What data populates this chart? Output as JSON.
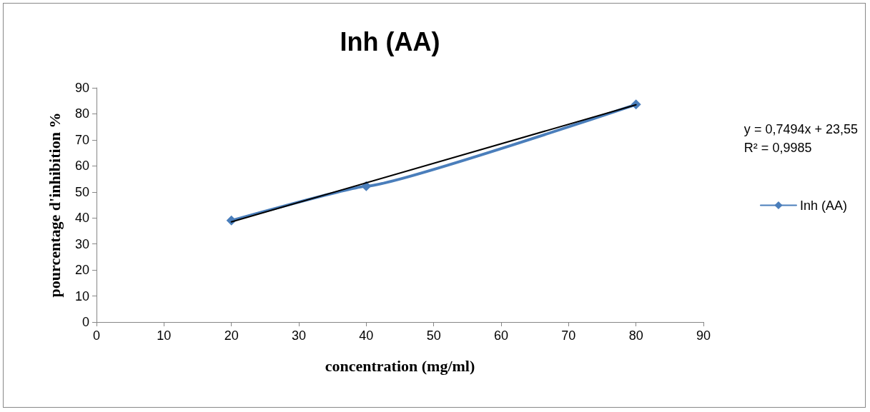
{
  "chart_data": {
    "type": "line",
    "title": "Inh (AA)",
    "xlabel": "concentration (mg/ml)",
    "ylabel": "pourcentage d'inhibition %",
    "series": [
      {
        "name": "Inh (AA)",
        "color": "#4a7ebb",
        "x": [
          20,
          40,
          80
        ],
        "values": [
          39,
          52.2,
          83.6
        ],
        "marker": "diamond"
      },
      {
        "type": "line",
        "color": "#000000",
        "x": [
          20,
          80
        ],
        "values": [
          38.5,
          83.5
        ],
        "marker": "none"
      }
    ],
    "annotations": [
      "y = 0,7494x + 23,55",
      "R² = 0,9985"
    ],
    "xlim": [
      0,
      90
    ],
    "xticks": [
      0,
      10,
      20,
      30,
      40,
      50,
      60,
      70,
      80,
      90
    ],
    "ylim": [
      0,
      90
    ],
    "yticks": [
      0,
      10,
      20,
      30,
      40,
      50,
      60,
      70,
      80,
      90
    ],
    "grid": false,
    "legend": "right"
  }
}
